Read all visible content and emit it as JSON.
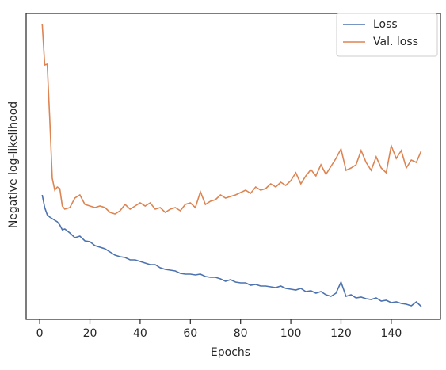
{
  "chart_data": {
    "type": "line",
    "x_label": "Epochs",
    "y_label": "Negative log-likelihood",
    "x": [
      1,
      2,
      3,
      4,
      5,
      6,
      7,
      8,
      9,
      10,
      12,
      14,
      16,
      18,
      20,
      22,
      24,
      26,
      28,
      30,
      32,
      34,
      36,
      38,
      40,
      42,
      44,
      46,
      48,
      50,
      52,
      54,
      56,
      58,
      60,
      62,
      64,
      66,
      68,
      70,
      72,
      74,
      76,
      78,
      80,
      82,
      84,
      86,
      88,
      90,
      92,
      94,
      96,
      98,
      100,
      102,
      104,
      106,
      108,
      110,
      112,
      114,
      116,
      118,
      120,
      122,
      124,
      126,
      128,
      130,
      132,
      134,
      136,
      138,
      140,
      142,
      144,
      146,
      148,
      150,
      152
    ],
    "series": [
      {
        "name": "Loss",
        "color": "#4c72b0",
        "values": [
          1.57,
          1.41,
          1.32,
          1.29,
          1.27,
          1.25,
          1.23,
          1.19,
          1.13,
          1.14,
          1.09,
          1.03,
          1.05,
          0.99,
          0.98,
          0.93,
          0.91,
          0.89,
          0.85,
          0.81,
          0.79,
          0.78,
          0.75,
          0.75,
          0.73,
          0.71,
          0.69,
          0.69,
          0.65,
          0.63,
          0.62,
          0.61,
          0.58,
          0.57,
          0.57,
          0.56,
          0.57,
          0.54,
          0.53,
          0.53,
          0.51,
          0.48,
          0.5,
          0.47,
          0.46,
          0.46,
          0.43,
          0.44,
          0.42,
          0.42,
          0.41,
          0.4,
          0.42,
          0.39,
          0.38,
          0.37,
          0.39,
          0.35,
          0.36,
          0.33,
          0.35,
          0.31,
          0.29,
          0.33,
          0.47,
          0.29,
          0.31,
          0.27,
          0.28,
          0.26,
          0.25,
          0.27,
          0.23,
          0.24,
          0.21,
          0.22,
          0.2,
          0.19,
          0.17,
          0.22,
          0.16
        ]
      },
      {
        "name": "Val. loss",
        "color": "#dd8452",
        "values": [
          3.73,
          3.21,
          3.22,
          2.53,
          1.78,
          1.63,
          1.67,
          1.65,
          1.43,
          1.39,
          1.41,
          1.53,
          1.57,
          1.45,
          1.43,
          1.41,
          1.43,
          1.41,
          1.35,
          1.33,
          1.37,
          1.45,
          1.39,
          1.43,
          1.47,
          1.43,
          1.47,
          1.39,
          1.41,
          1.35,
          1.39,
          1.41,
          1.37,
          1.45,
          1.47,
          1.41,
          1.61,
          1.45,
          1.49,
          1.51,
          1.57,
          1.53,
          1.55,
          1.57,
          1.6,
          1.63,
          1.59,
          1.67,
          1.63,
          1.65,
          1.71,
          1.67,
          1.73,
          1.69,
          1.75,
          1.85,
          1.71,
          1.81,
          1.89,
          1.81,
          1.95,
          1.83,
          1.93,
          2.03,
          2.15,
          1.88,
          1.91,
          1.95,
          2.13,
          1.98,
          1.88,
          2.05,
          1.91,
          1.85,
          2.19,
          2.03,
          2.13,
          1.91,
          2.01,
          1.98,
          2.13
        ]
      }
    ],
    "xlim": [
      -5.4,
      159.6
    ],
    "xticks": [
      0,
      20,
      40,
      60,
      80,
      100,
      120,
      140
    ],
    "ylim": [
      0,
      3.86
    ],
    "legend": "upper right"
  }
}
